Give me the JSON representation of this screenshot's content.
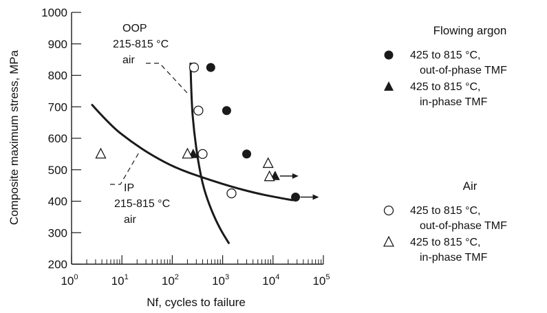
{
  "chart_data": {
    "type": "scatter",
    "title": "",
    "xlabel": "Nf, cycles to failure",
    "ylabel": "Composite maximum stress, MPa",
    "x_scale": "log",
    "xlim": [
      1,
      100000
    ],
    "ylim": [
      200,
      1000
    ],
    "x_ticks": [
      {
        "value": 1,
        "base": "10",
        "exp": "0"
      },
      {
        "value": 10,
        "base": "10",
        "exp": "1"
      },
      {
        "value": 100,
        "base": "10",
        "exp": "2"
      },
      {
        "value": 1000,
        "base": "10",
        "exp": "3"
      },
      {
        "value": 10000,
        "base": "10",
        "exp": "4"
      },
      {
        "value": 100000,
        "base": "10",
        "exp": "5"
      }
    ],
    "y_ticks": [
      "200",
      "300",
      "400",
      "500",
      "600",
      "700",
      "800",
      "900",
      "1000"
    ],
    "grid": false,
    "legend_position": "right",
    "legend_groups": [
      {
        "heading": "Flowing argon",
        "entries": [
          {
            "series": 0,
            "line1": "425 to 815 °C,",
            "line2": "out-of-phase TMF"
          },
          {
            "series": 1,
            "line1": "425 to 815 °C,",
            "line2": "in-phase TMF"
          }
        ]
      },
      {
        "heading": "Air",
        "entries": [
          {
            "series": 2,
            "line1": "425 to 815 °C,",
            "line2": "out-of-phase TMF"
          },
          {
            "series": 3,
            "line1": "425 to 815 °C,",
            "line2": "in-phase TMF"
          }
        ]
      }
    ],
    "series": [
      {
        "marker": "filled-circle",
        "color": "#1a1a1a",
        "points": [
          [
            580,
            825
          ],
          [
            1200,
            688
          ],
          [
            3000,
            550
          ],
          [
            28000,
            413
          ]
        ],
        "runouts": [
          [
            28000,
            413
          ]
        ]
      },
      {
        "marker": "filled-triangle",
        "color": "#1a1a1a",
        "points": [
          [
            260,
            550
          ],
          [
            11000,
            480
          ]
        ],
        "runouts": [
          [
            11000,
            480
          ]
        ]
      },
      {
        "marker": "open-circle",
        "color": "#1a1a1a",
        "points": [
          [
            270,
            825
          ],
          [
            330,
            688
          ],
          [
            400,
            550
          ],
          [
            1500,
            425
          ]
        ],
        "runouts": []
      },
      {
        "marker": "open-triangle",
        "color": "#1a1a1a",
        "points": [
          [
            3.8,
            550
          ],
          [
            200,
            550
          ],
          [
            8000,
            520
          ],
          [
            8500,
            478
          ]
        ],
        "runouts": []
      }
    ],
    "curves": [
      {
        "label_lines": [
          "OOP",
          "215-815 °C",
          "air"
        ],
        "points": [
          [
            230,
            840
          ],
          [
            240,
            720
          ],
          [
            270,
            620
          ],
          [
            330,
            520
          ],
          [
            420,
            440
          ],
          [
            600,
            370
          ],
          [
            900,
            310
          ],
          [
            1350,
            265
          ]
        ]
      },
      {
        "label_lines": [
          "IP",
          "215-815 °C",
          "air"
        ],
        "points": [
          [
            2.5,
            708
          ],
          [
            6,
            640
          ],
          [
            15,
            590
          ],
          [
            40,
            545
          ],
          [
            120,
            505
          ],
          [
            400,
            475
          ],
          [
            1500,
            446
          ],
          [
            5000,
            424
          ],
          [
            14000,
            410
          ],
          [
            25000,
            403
          ]
        ]
      }
    ]
  }
}
